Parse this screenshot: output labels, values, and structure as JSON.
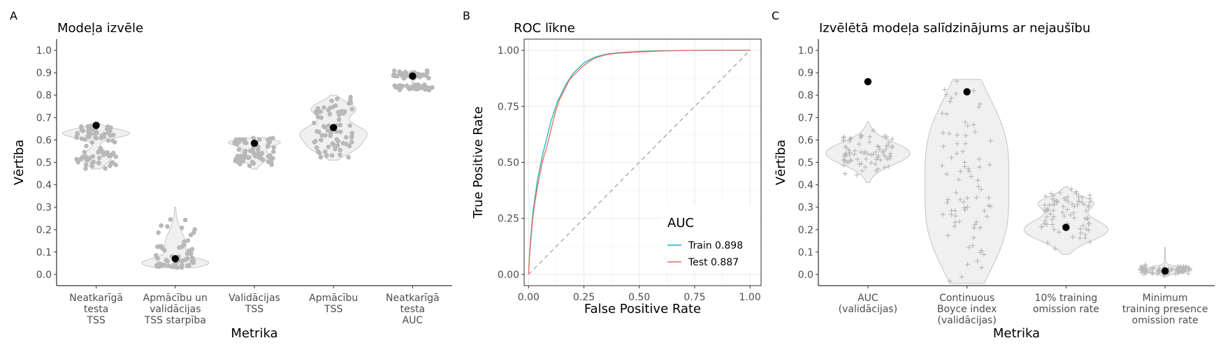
{
  "colors": {
    "grey_points": "#b8b8b8",
    "violin_fill": "#f0f0f0",
    "violin_stroke": "#c4c4c4",
    "mean_point": "#000000",
    "train": "#16b5c2",
    "test": "#ee6a5f",
    "diagonal": "#a8a8a8",
    "grid": "#ebebeb"
  },
  "chart_data": [
    {
      "panel": "A",
      "type": "violin",
      "title": "Modeļa izvēle",
      "xlabel": "Metrika",
      "ylabel": "Vērtība",
      "ylim": [
        -0.05,
        1.05
      ],
      "yticks": [
        "0.0",
        "0.1",
        "0.2",
        "0.3",
        "0.4",
        "0.5",
        "0.6",
        "0.7",
        "0.8",
        "0.9",
        "1.0"
      ],
      "categories": [
        [
          "Neatkarīgā",
          "testa",
          "TSS"
        ],
        [
          "Apmācību un",
          "validācijas",
          "TSS starpība"
        ],
        [
          "Validācijas",
          "TSS"
        ],
        [
          "Apmācību",
          "TSS"
        ],
        [
          "Neatkarīgā",
          "testa",
          "AUC"
        ]
      ],
      "selected_values": [
        0.665,
        0.07,
        0.585,
        0.655,
        0.885
      ],
      "distributions": [
        {
          "min": 0.47,
          "max": 0.68,
          "modes": [
            [
              0.63,
              0.02,
              1.0
            ],
            [
              0.52,
              0.03,
              0.45
            ]
          ],
          "n": 75
        },
        {
          "min": 0.03,
          "max": 0.3,
          "modes": [
            [
              0.05,
              0.02,
              1.0
            ],
            [
              0.13,
              0.06,
              0.35
            ]
          ],
          "n": 60
        },
        {
          "min": 0.47,
          "max": 0.61,
          "modes": [
            [
              0.59,
              0.015,
              1.0
            ],
            [
              0.53,
              0.03,
              0.6
            ]
          ],
          "n": 70
        },
        {
          "min": 0.51,
          "max": 0.8,
          "modes": [
            [
              0.63,
              0.04,
              0.9
            ],
            [
              0.74,
              0.03,
              0.6
            ],
            [
              0.56,
              0.03,
              0.45
            ]
          ],
          "n": 70
        },
        {
          "min": 0.82,
          "max": 0.91,
          "modes": [
            [
              0.89,
              0.008,
              1.0
            ],
            [
              0.835,
              0.006,
              0.35
            ]
          ],
          "n": 70
        }
      ]
    },
    {
      "panel": "B",
      "type": "line",
      "title": "ROC līkne",
      "xlabel": "False Positive Rate",
      "ylabel": "True Positive Rate",
      "xlim": [
        -0.02,
        1.05
      ],
      "ylim": [
        -0.05,
        1.05
      ],
      "xticks": [
        "0.00",
        "0.25",
        "0.50",
        "0.75",
        "1.00"
      ],
      "yticks": [
        "0.00",
        "0.25",
        "0.50",
        "0.75",
        "1.00"
      ],
      "legend": {
        "title": "AUC",
        "position": "bottom-right"
      },
      "series": [
        {
          "name": "Train 0.898",
          "color_key": "train",
          "x": [
            0,
            0.005,
            0.01,
            0.02,
            0.03,
            0.04,
            0.05,
            0.06,
            0.07,
            0.08,
            0.09,
            0.1,
            0.11,
            0.12,
            0.13,
            0.14,
            0.15,
            0.16,
            0.17,
            0.18,
            0.19,
            0.2,
            0.22,
            0.24,
            0.26,
            0.28,
            0.3,
            0.33,
            0.36,
            0.4,
            0.45,
            0.5,
            0.55,
            0.6,
            0.7,
            0.8,
            0.9,
            1.0
          ],
          "y": [
            0,
            0.1,
            0.17,
            0.28,
            0.35,
            0.42,
            0.47,
            0.52,
            0.56,
            0.6,
            0.64,
            0.68,
            0.71,
            0.74,
            0.77,
            0.79,
            0.81,
            0.83,
            0.85,
            0.865,
            0.88,
            0.895,
            0.915,
            0.935,
            0.95,
            0.96,
            0.97,
            0.978,
            0.984,
            0.989,
            0.992,
            0.995,
            0.997,
            0.998,
            0.999,
            1.0,
            1.0,
            1.0
          ]
        },
        {
          "name": "Test 0.887",
          "color_key": "test",
          "x": [
            0,
            0.005,
            0.01,
            0.02,
            0.03,
            0.04,
            0.05,
            0.06,
            0.07,
            0.08,
            0.09,
            0.1,
            0.11,
            0.12,
            0.13,
            0.14,
            0.15,
            0.16,
            0.17,
            0.18,
            0.19,
            0.2,
            0.22,
            0.24,
            0.26,
            0.28,
            0.3,
            0.33,
            0.36,
            0.4,
            0.45,
            0.5,
            0.55,
            0.6,
            0.7,
            0.8,
            0.9,
            1.0
          ],
          "y": [
            0,
            0.09,
            0.15,
            0.26,
            0.33,
            0.39,
            0.44,
            0.49,
            0.53,
            0.56,
            0.6,
            0.64,
            0.68,
            0.72,
            0.75,
            0.78,
            0.8,
            0.82,
            0.84,
            0.86,
            0.875,
            0.885,
            0.905,
            0.925,
            0.94,
            0.955,
            0.965,
            0.975,
            0.982,
            0.987,
            0.99,
            0.993,
            0.995,
            0.997,
            0.999,
            1.0,
            1.0,
            1.0
          ]
        },
        {
          "name": "",
          "color_key": "diagonal",
          "dashed": true,
          "x": [
            0,
            1
          ],
          "y": [
            0,
            1
          ]
        }
      ]
    },
    {
      "panel": "C",
      "type": "violin",
      "title": "Izvēlētā modeļa salīdzinājums ar nejaušību",
      "xlabel": "Metrika",
      "ylabel": "Vērtība",
      "ylim": [
        -0.05,
        1.05
      ],
      "yticks": [
        "0.0",
        "0.1",
        "0.2",
        "0.3",
        "0.4",
        "0.5",
        "0.6",
        "0.7",
        "0.8",
        "0.9",
        "1.0"
      ],
      "categories": [
        [
          "AUC",
          "(validācijas)"
        ],
        [
          "Continuous",
          "Boyce index",
          "(validācijas)"
        ],
        [
          "10% training",
          "omission rate"
        ],
        [
          "Minimum",
          "training presence",
          "omission rate"
        ]
      ],
      "selected_values": [
        0.86,
        0.815,
        0.21,
        0.015
      ],
      "distributions": [
        {
          "min": 0.41,
          "max": 0.68,
          "modes": [
            [
              0.54,
              0.05,
              1.0
            ]
          ],
          "n": 80
        },
        {
          "min": -0.04,
          "max": 0.87,
          "modes": [
            [
              0.2,
              0.2,
              0.5
            ],
            [
              0.6,
              0.2,
              0.5
            ]
          ],
          "n": 80
        },
        {
          "min": 0.09,
          "max": 0.39,
          "modes": [
            [
              0.2,
              0.05,
              1.0
            ],
            [
              0.32,
              0.03,
              0.6
            ]
          ],
          "n": 80
        },
        {
          "min": -0.01,
          "max": 0.12,
          "modes": [
            [
              0.02,
              0.012,
              1.0
            ]
          ],
          "n": 80
        }
      ]
    }
  ]
}
